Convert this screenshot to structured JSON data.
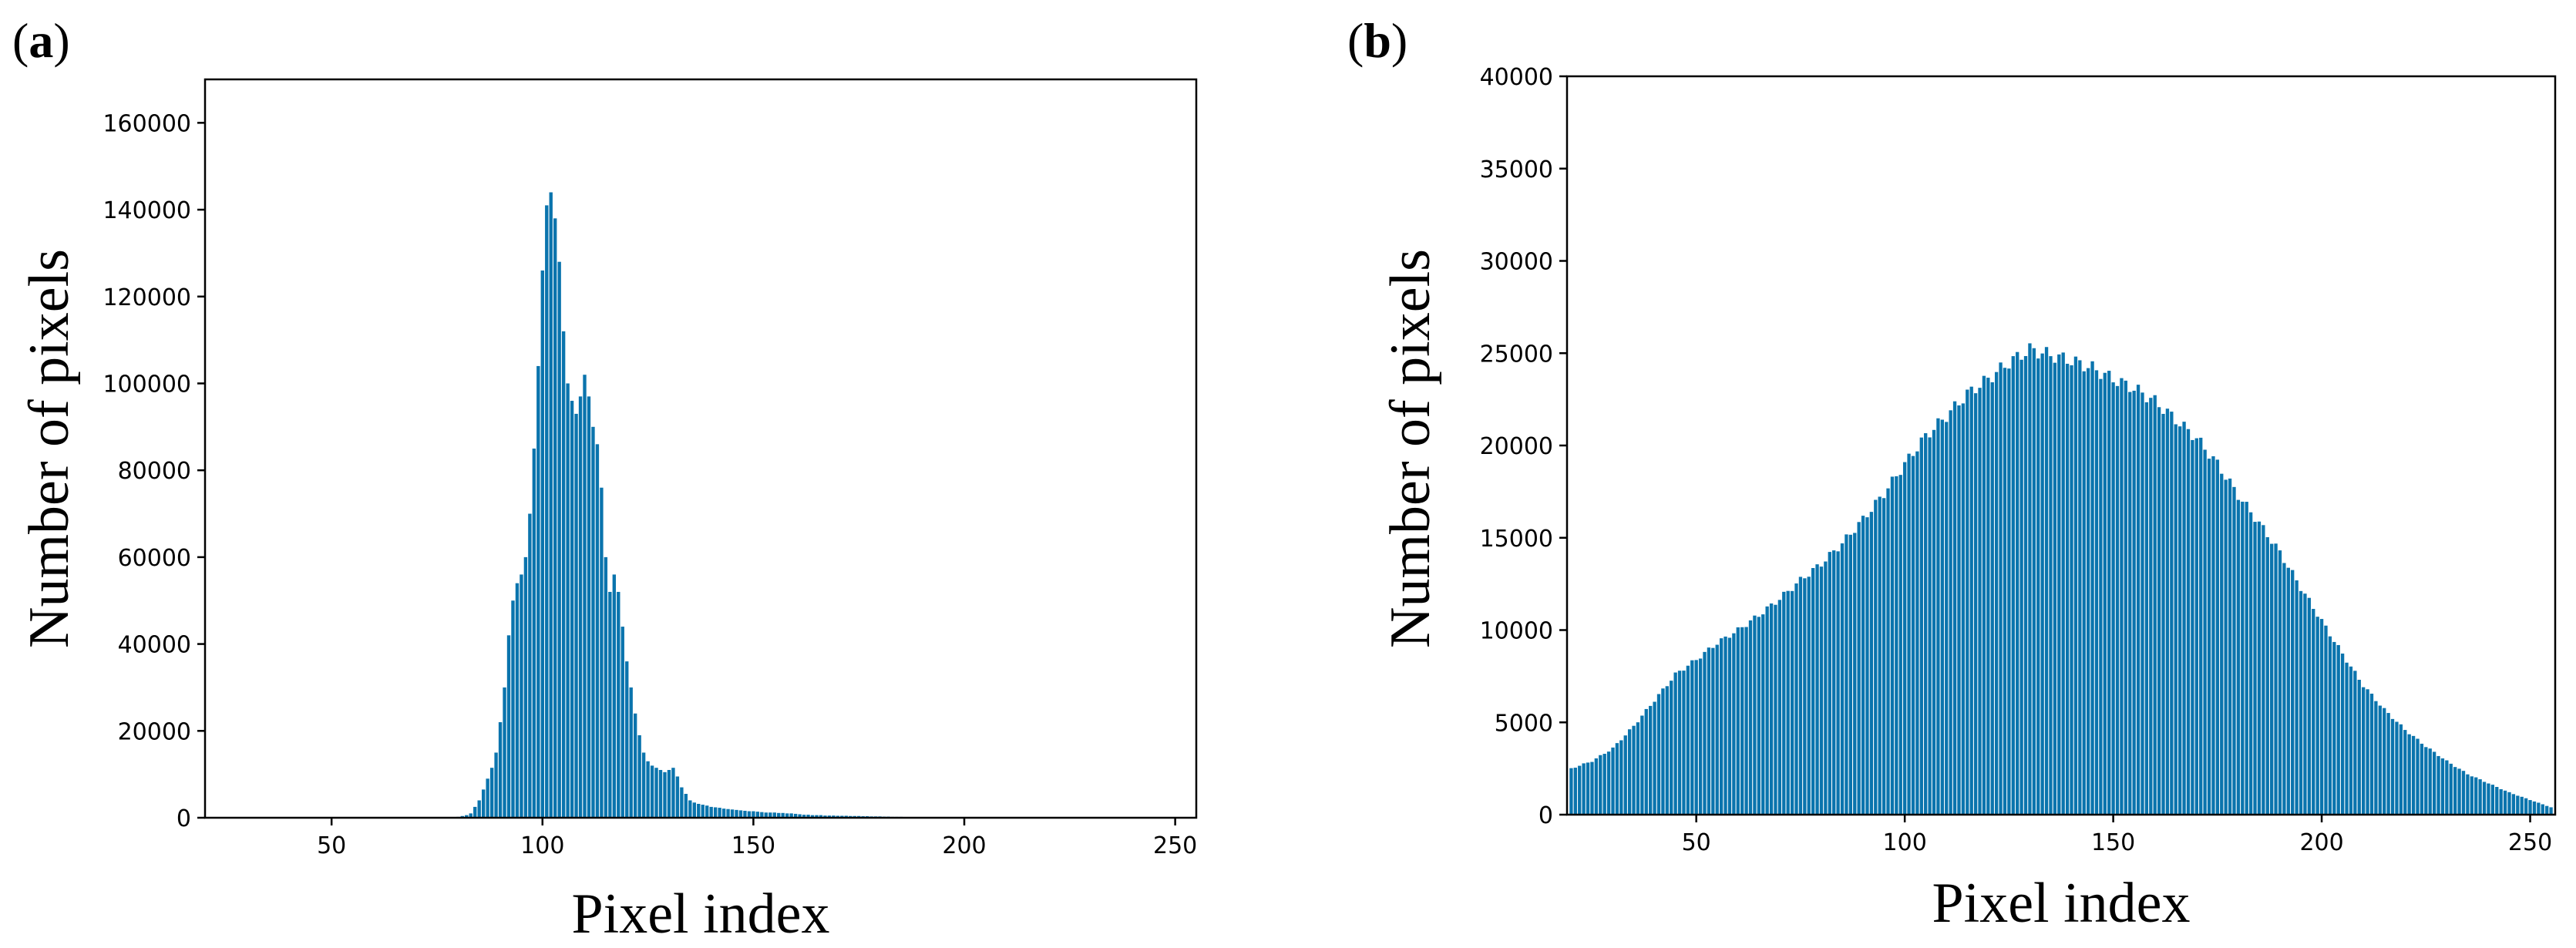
{
  "colors": {
    "bar": "#0a74ad",
    "axis": "#000000",
    "background": "#ffffff"
  },
  "chart_data": [
    {
      "panel": "(a)",
      "panel_letter": "a",
      "type": "bar",
      "title": "",
      "xlabel": "Pixel index",
      "ylabel": "Number of pixels",
      "xlim": [
        20,
        255
      ],
      "ylim": [
        0,
        170000
      ],
      "xticks": [
        50,
        100,
        150,
        200,
        250
      ],
      "yticks": [
        0,
        20000,
        40000,
        60000,
        80000,
        100000,
        120000,
        140000,
        160000
      ],
      "grid": false,
      "x_start": 80,
      "values": [
        200,
        400,
        600,
        1000,
        2500,
        4000,
        6500,
        9000,
        11500,
        15000,
        22000,
        30000,
        42000,
        50000,
        54000,
        56000,
        60000,
        70000,
        85000,
        104000,
        126000,
        141000,
        144000,
        138000,
        128000,
        112000,
        100000,
        96000,
        93000,
        97000,
        102000,
        97000,
        90000,
        86000,
        76000,
        60000,
        52000,
        56000,
        52000,
        44000,
        36000,
        30000,
        24000,
        19000,
        15000,
        13000,
        12000,
        11500,
        11000,
        10500,
        11000,
        11500,
        9500,
        7000,
        5500,
        4000,
        3500,
        3200,
        3000,
        2800,
        2500,
        2400,
        2300,
        2100,
        2000,
        1900,
        1800,
        1700,
        1600,
        1500,
        1500,
        1400,
        1300,
        1200,
        1200,
        1200,
        1100,
        1100,
        1000,
        1000,
        900,
        800,
        700,
        700,
        600,
        600,
        600,
        500,
        500,
        500,
        450,
        450,
        450,
        400,
        400,
        400,
        350,
        350,
        300,
        300,
        300,
        250,
        250,
        200,
        200,
        200,
        150,
        150,
        150,
        100,
        100,
        80,
        60,
        50,
        40,
        30,
        20,
        20,
        10,
        10
      ]
    },
    {
      "panel": "(b)",
      "panel_letter": "b",
      "type": "bar",
      "title": "",
      "xlabel": "Pixel index",
      "ylabel": "Number of pixels",
      "xlim": [
        19,
        256
      ],
      "ylim": [
        0,
        40000
      ],
      "xticks": [
        50,
        100,
        150,
        200,
        250
      ],
      "yticks": [
        0,
        5000,
        10000,
        15000,
        20000,
        25000,
        30000,
        35000,
        40000
      ],
      "grid": false,
      "x_start": 20,
      "x_end": 255,
      "profile_points": [
        [
          20,
          2500
        ],
        [
          25,
          2900
        ],
        [
          30,
          3600
        ],
        [
          35,
          4800
        ],
        [
          40,
          6200
        ],
        [
          45,
          7600
        ],
        [
          50,
          8400
        ],
        [
          55,
          9300
        ],
        [
          60,
          10000
        ],
        [
          65,
          10800
        ],
        [
          70,
          11700
        ],
        [
          75,
          12700
        ],
        [
          80,
          13600
        ],
        [
          85,
          14700
        ],
        [
          90,
          16000
        ],
        [
          95,
          17400
        ],
        [
          100,
          19000
        ],
        [
          105,
          20500
        ],
        [
          110,
          21600
        ],
        [
          115,
          22800
        ],
        [
          120,
          23600
        ],
        [
          125,
          24500
        ],
        [
          130,
          25200
        ],
        [
          135,
          24900
        ],
        [
          140,
          24600
        ],
        [
          145,
          24200
        ],
        [
          150,
          23600
        ],
        [
          155,
          23100
        ],
        [
          160,
          22400
        ],
        [
          165,
          21400
        ],
        [
          170,
          20400
        ],
        [
          175,
          19000
        ],
        [
          180,
          17300
        ],
        [
          185,
          15800
        ],
        [
          190,
          14200
        ],
        [
          195,
          12300
        ],
        [
          200,
          10500
        ],
        [
          205,
          8700
        ],
        [
          210,
          7000
        ],
        [
          215,
          5700
        ],
        [
          220,
          4600
        ],
        [
          225,
          3700
        ],
        [
          230,
          2900
        ],
        [
          235,
          2200
        ],
        [
          240,
          1700
        ],
        [
          245,
          1200
        ],
        [
          250,
          800
        ],
        [
          255,
          400
        ]
      ]
    }
  ]
}
